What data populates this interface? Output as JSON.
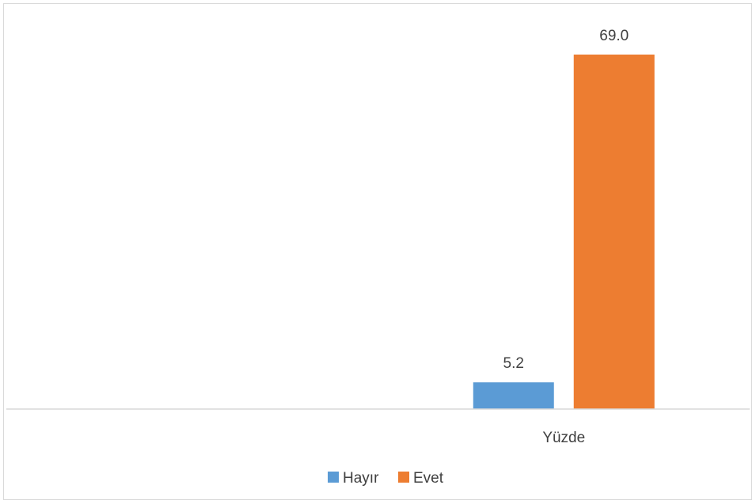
{
  "chart_data": {
    "type": "bar",
    "categories": [
      "",
      "Yüzde"
    ],
    "series": [
      {
        "name": "Hayır",
        "color": "#5b9bd5",
        "values": [
          null,
          5.2
        ]
      },
      {
        "name": "Evet",
        "color": "#ed7d31",
        "values": [
          null,
          69.0
        ]
      }
    ],
    "data_labels": [
      "5.2",
      "69.0"
    ],
    "ylim": [
      0,
      75
    ],
    "title": "",
    "xlabel": "",
    "ylabel": "",
    "grid": false,
    "legend": "bottom"
  },
  "legend": {
    "items": [
      {
        "label": "Hayır",
        "color": "#5b9bd5"
      },
      {
        "label": "Evet",
        "color": "#ed7d31"
      }
    ]
  }
}
